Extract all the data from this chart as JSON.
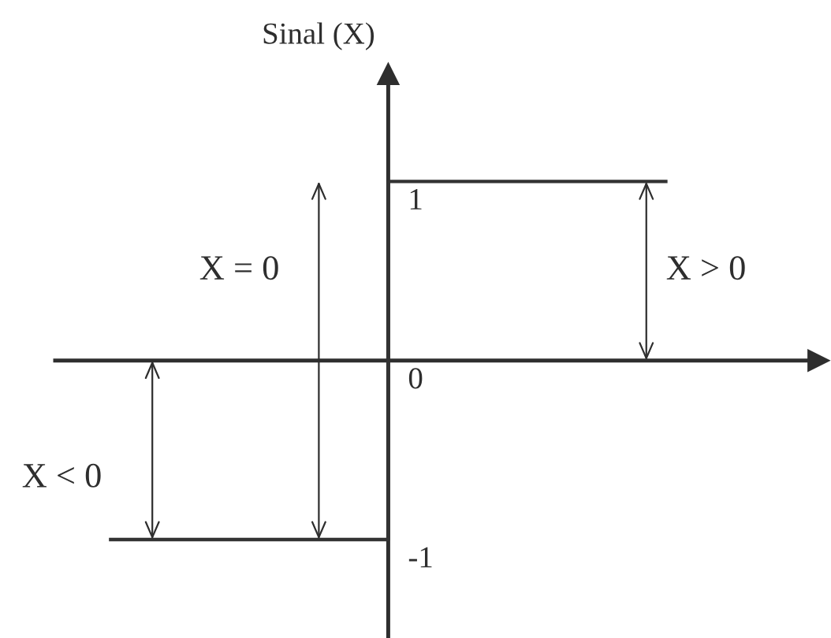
{
  "chart_data": {
    "type": "step",
    "ylabel": "Sinal (X)",
    "categories": [
      null,
      null,
      null
    ],
    "series": [
      {
        "color": "#333333",
        "values": [
          -1,
          1,
          1
        ]
      }
    ],
    "ylim": [
      -1.55,
      1.6
    ],
    "yticks": [
      -1,
      0,
      1
    ],
    "annotations": [
      "X = 0",
      "X > 0",
      "X < 0"
    ]
  }
}
